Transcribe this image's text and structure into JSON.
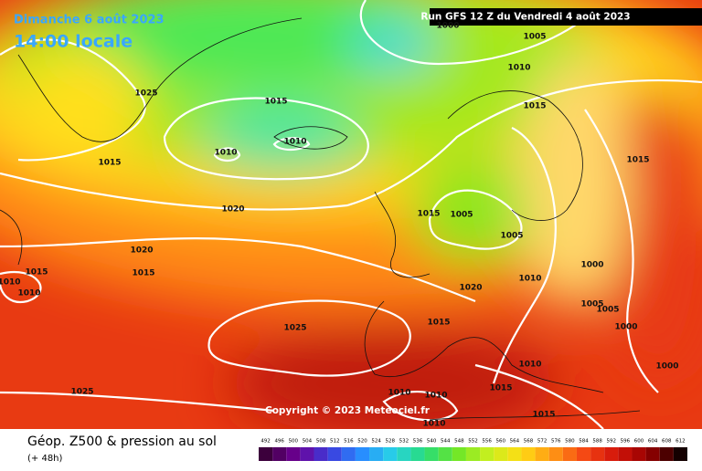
{
  "header": {
    "date": "Dimanche 6 août 2023",
    "time": "14:00 locale",
    "run": "Run GFS 12 Z du Vendredi 4 août 2023"
  },
  "isobars": [
    {
      "label": "1000"
    },
    {
      "label": "1005"
    },
    {
      "label": "1010"
    },
    {
      "label": "1025"
    },
    {
      "label": "1015"
    },
    {
      "label": "1015"
    },
    {
      "label": "1010"
    },
    {
      "label": "1010"
    },
    {
      "label": "1015"
    },
    {
      "label": "1015"
    },
    {
      "label": "1020"
    },
    {
      "label": "1015"
    },
    {
      "label": "1005"
    },
    {
      "label": "1005"
    },
    {
      "label": "1020"
    },
    {
      "label": "1015"
    },
    {
      "label": "1015"
    },
    {
      "label": "1010"
    },
    {
      "label": "1010"
    },
    {
      "label": "1000"
    },
    {
      "label": "1010"
    },
    {
      "label": "1020"
    },
    {
      "label": "1005"
    },
    {
      "label": "1005"
    },
    {
      "label": "1015"
    },
    {
      "label": "1025"
    },
    {
      "label": "1000"
    },
    {
      "label": "1010"
    },
    {
      "label": "1000"
    },
    {
      "label": "1025"
    },
    {
      "label": "1010"
    },
    {
      "label": "1010"
    },
    {
      "label": "1015"
    },
    {
      "label": "1015"
    },
    {
      "label": "1010"
    }
  ],
  "copyright": "Copyright © 2023 Meteociel.fr",
  "footer": {
    "title": "Géop. Z500 & pression au sol",
    "lead": "(+ 48h)"
  },
  "scale": {
    "values": [
      492,
      496,
      500,
      504,
      508,
      512,
      516,
      520,
      524,
      528,
      532,
      536,
      540,
      544,
      548,
      552,
      556,
      560,
      564,
      568,
      572,
      576,
      580,
      584,
      588,
      592,
      596,
      600,
      604,
      608,
      612
    ]
  }
}
